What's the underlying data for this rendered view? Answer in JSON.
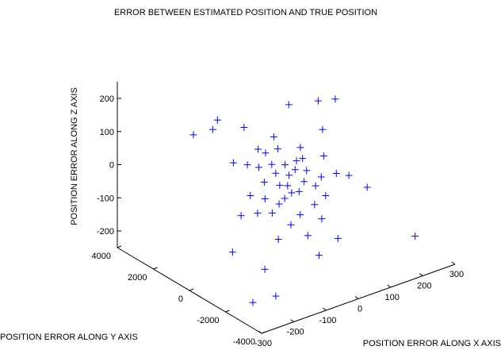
{
  "chart_data": {
    "type": "scatter",
    "title": "ERROR BETWEEN ESTIMATED POSITION AND TRUE POSITION",
    "xlabel": "POSITION ERROR ALONG X AXIS",
    "ylabel": "POSITION ERROR ALONG Y AXIS",
    "zlabel": "POSITION ERROR ALONG Z AXIS",
    "x_ticks": [
      "-300",
      "-200",
      "-100",
      "0",
      "100",
      "200",
      "300"
    ],
    "y_ticks": [
      "-4000",
      "-2000",
      "0",
      "2000",
      "4000"
    ],
    "z_ticks": [
      "-200",
      "-100",
      "0",
      "100",
      "200"
    ],
    "xlim": [
      -300,
      300
    ],
    "ylim": [
      -4000,
      4000
    ],
    "zlim": [
      -200,
      200
    ],
    "grid": false,
    "marker": "+",
    "marker_color": "#0000ff",
    "points": [
      {
        "x": -120,
        "y": 3000,
        "z": 60
      },
      {
        "x": -60,
        "y": 3000,
        "z": 55
      },
      {
        "x": 320,
        "y": 3000,
        "z": 15
      },
      {
        "x": -80,
        "y": 1500,
        "z": 10
      },
      {
        "x": 20,
        "y": 1500,
        "z": 5
      },
      {
        "x": -40,
        "y": 800,
        "z": 5
      },
      {
        "x": 0,
        "y": 800,
        "z": 0
      },
      {
        "x": 30,
        "y": 600,
        "z": -5
      },
      {
        "x": -10,
        "y": 400,
        "z": -10
      },
      {
        "x": 60,
        "y": 500,
        "z": 0
      },
      {
        "x": 100,
        "y": 1000,
        "z": 10
      },
      {
        "x": 180,
        "y": 1200,
        "z": 30
      },
      {
        "x": 150,
        "y": 600,
        "z": -20
      },
      {
        "x": -150,
        "y": -1500,
        "z": -190
      },
      {
        "x": -50,
        "y": -500,
        "z": -60
      },
      {
        "x": 0,
        "y": -300,
        "z": -50
      },
      {
        "x": 50,
        "y": -100,
        "z": -40
      },
      {
        "x": -20,
        "y": 0,
        "z": -30
      },
      {
        "x": 20,
        "y": 200,
        "z": -20
      },
      {
        "x": 80,
        "y": 300,
        "z": -30
      },
      {
        "x": -100,
        "y": -200,
        "z": -80
      },
      {
        "x": -60,
        "y": 100,
        "z": -60
      },
      {
        "x": 40,
        "y": 0,
        "z": -70
      },
      {
        "x": 120,
        "y": 200,
        "z": -60
      },
      {
        "x": -30,
        "y": -800,
        "z": -120
      },
      {
        "x": 10,
        "y": -600,
        "z": -110
      },
      {
        "x": 60,
        "y": -500,
        "z": -100
      },
      {
        "x": 100,
        "y": -400,
        "z": -90
      },
      {
        "x": -80,
        "y": -1000,
        "z": -140
      },
      {
        "x": 0,
        "y": -1200,
        "z": -150
      },
      {
        "x": 60,
        "y": -900,
        "z": -130
      },
      {
        "x": 200,
        "y": 100,
        "z": -80
      },
      {
        "x": 240,
        "y": -200,
        "z": -120
      },
      {
        "x": -20,
        "y": 1200,
        "z": 40
      },
      {
        "x": 30,
        "y": 1000,
        "z": 30
      },
      {
        "x": -100,
        "y": 200,
        "z": -40
      },
      {
        "x": -140,
        "y": 0,
        "z": -80
      },
      {
        "x": -60,
        "y": -300,
        "z": -90
      },
      {
        "x": 80,
        "y": -200,
        "z": -60
      },
      {
        "x": 150,
        "y": -100,
        "z": -50
      },
      {
        "x": 50,
        "y": 400,
        "z": -20
      },
      {
        "x": -10,
        "y": -100,
        "z": -70
      },
      {
        "x": 10,
        "y": 100,
        "z": -45
      },
      {
        "x": -40,
        "y": 500,
        "z": -30
      },
      {
        "x": 90,
        "y": 700,
        "z": -10
      },
      {
        "x": -70,
        "y": 900,
        "z": 20
      },
      {
        "x": 40,
        "y": 1400,
        "z": 50
      },
      {
        "x": -30,
        "y": 1800,
        "z": 90
      },
      {
        "x": -90,
        "y": 2200,
        "z": 120
      },
      {
        "x": 120,
        "y": 2000,
        "z": 100
      },
      {
        "x": 200,
        "y": 1800,
        "z": 90
      },
      {
        "x": -200,
        "y": -600,
        "z": -150
      },
      {
        "x": -10,
        "y": -2000,
        "z": -180
      },
      {
        "x": 60,
        "y": -1800,
        "z": -160
      },
      {
        "x": 260,
        "y": -2500,
        "z": -200
      },
      {
        "x": -260,
        "y": -2800,
        "z": -210
      },
      {
        "x": -200,
        "y": -3000,
        "z": -205
      }
    ]
  }
}
